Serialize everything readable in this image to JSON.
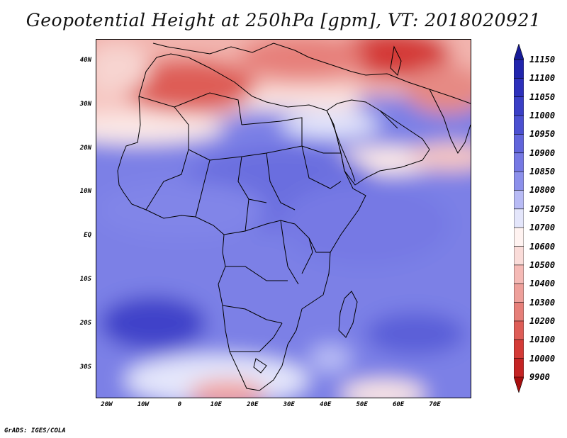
{
  "title": "Geopotential Height at 250hPa [gpm], VT: 2018020921",
  "credit": "GrADS: IGES/COLA",
  "map": {
    "projection": "latlon",
    "lon_range": [
      -23,
      80
    ],
    "lat_range": [
      -37,
      45
    ],
    "lat_ticks": [
      {
        "label": "40N",
        "value": 40
      },
      {
        "label": "30N",
        "value": 30
      },
      {
        "label": "20N",
        "value": 20
      },
      {
        "label": "10N",
        "value": 10
      },
      {
        "label": "EQ",
        "value": 0
      },
      {
        "label": "10S",
        "value": -10
      },
      {
        "label": "20S",
        "value": -20
      },
      {
        "label": "30S",
        "value": -30
      }
    ],
    "lon_ticks": [
      {
        "label": "20W",
        "value": -20
      },
      {
        "label": "10W",
        "value": -10
      },
      {
        "label": "0",
        "value": 0
      },
      {
        "label": "10E",
        "value": 10
      },
      {
        "label": "20E",
        "value": 20
      },
      {
        "label": "30E",
        "value": 30
      },
      {
        "label": "40E",
        "value": 40
      },
      {
        "label": "50E",
        "value": 50
      },
      {
        "label": "60E",
        "value": 60
      },
      {
        "label": "70E",
        "value": 70
      }
    ]
  },
  "colorbar": {
    "levels": [
      "11150",
      "11100",
      "11050",
      "11000",
      "10950",
      "10900",
      "10850",
      "10800",
      "10750",
      "10700",
      "10600",
      "10500",
      "10400",
      "10300",
      "10200",
      "10100",
      "10000",
      "9900"
    ],
    "colors": [
      "#171a97",
      "#2125ad",
      "#2d30bb",
      "#3a3fc6",
      "#4b50d1",
      "#6165db",
      "#7679e4",
      "#8c90eb",
      "#b8bbf5",
      "#e4e6fb",
      "#fff3f1",
      "#fadcd9",
      "#f5bab6",
      "#eea09b",
      "#e67f79",
      "#de5d57",
      "#d43b37",
      "#c42424",
      "#a80e0e"
    ]
  }
}
